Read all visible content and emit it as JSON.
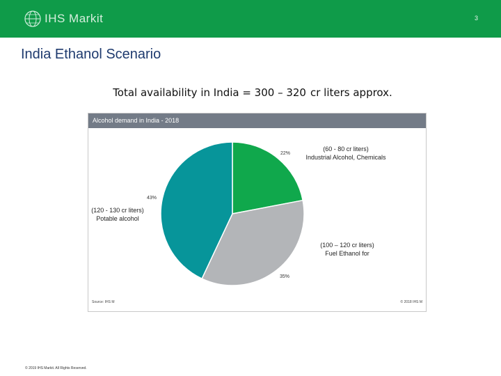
{
  "header": {
    "logo_text": "IHS Markit",
    "page_number": "3",
    "background": "#0f9b49"
  },
  "page_title": "India Ethanol Scenario",
  "subtitle": {
    "text": "Total availability in India = 300 – 320",
    "unit": "cr liters approx."
  },
  "chart_data": {
    "type": "pie",
    "title": "Alcohol demand in India - 2018",
    "slices": [
      {
        "key": "industrial",
        "percent": 22,
        "percent_label": "22%",
        "volume": "(60 - 80 cr liters)",
        "label": "Industrial Alcohol, Chemicals",
        "color": "#10a84c"
      },
      {
        "key": "fuel",
        "percent": 35,
        "percent_label": "35%",
        "volume": "(100 – 120 cr liters)",
        "label": "Fuel Ethanol for",
        "color": "#b3b5b8"
      },
      {
        "key": "potable",
        "percent": 43,
        "percent_label": "43%",
        "volume": "(120 - 130 cr liters)",
        "label": "Potable alcohol",
        "color": "#07959a"
      }
    ],
    "source": "Source: IHS M",
    "copyright": "© 2018 IHS M"
  },
  "footer": {
    "copyright": "© 2019 IHS Markit. All Rights Reserved."
  }
}
